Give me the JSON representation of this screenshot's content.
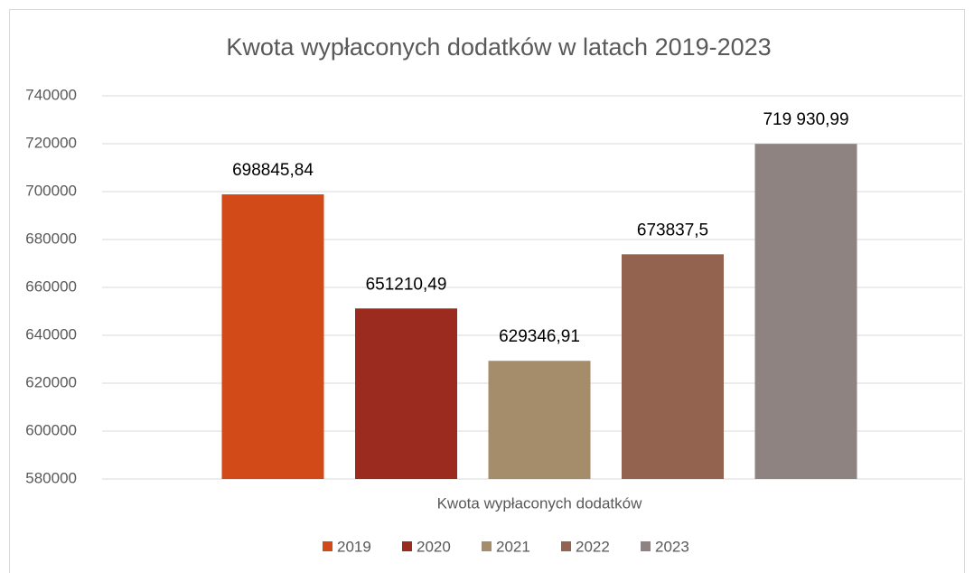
{
  "chart_data": {
    "type": "bar",
    "title": "Kwota wypłaconych dodatków w latach 2019-2023",
    "categories": [
      "Kwota wypłaconych dodatków"
    ],
    "series": [
      {
        "name": "2019",
        "color": "#d24a17",
        "values": [
          698845.84
        ],
        "value_labels": [
          "698845,84"
        ]
      },
      {
        "name": "2020",
        "color": "#9a2b1e",
        "values": [
          651210.49
        ],
        "value_labels": [
          "651210,49"
        ]
      },
      {
        "name": "2021",
        "color": "#a58d6c",
        "values": [
          629346.91
        ],
        "value_labels": [
          "629346,91"
        ]
      },
      {
        "name": "2022",
        "color": "#94634f",
        "values": [
          673837.5
        ],
        "value_labels": [
          "673837,5"
        ]
      },
      {
        "name": "2023",
        "color": "#8f8382",
        "values": [
          719930.99
        ],
        "value_labels": [
          "719 930,99"
        ]
      }
    ],
    "ylim": [
      580000,
      740000
    ],
    "yticks": [
      580000,
      600000,
      620000,
      640000,
      660000,
      680000,
      700000,
      720000,
      740000
    ],
    "grid": true,
    "legend": "bottom"
  }
}
